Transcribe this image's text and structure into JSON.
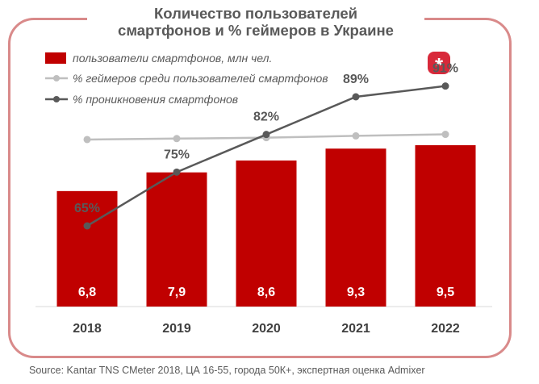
{
  "chart_data": {
    "type": "bar",
    "title_lines": [
      "Количество пользователей",
      "смартфонов и % геймеров в Украине"
    ],
    "categories": [
      "2018",
      "2019",
      "2020",
      "2021",
      "2022"
    ],
    "series": [
      {
        "name": "пользователи смартфонов, млн чел.",
        "kind": "bar",
        "color": "#c00000",
        "values": [
          6.8,
          7.9,
          8.6,
          9.3,
          9.5
        ],
        "labels": [
          "6,8",
          "7,9",
          "8,6",
          "9,3",
          "9,5"
        ]
      },
      {
        "name": "% геймеров среди пользователей смартфонов",
        "kind": "line",
        "color": "#bfbfbf",
        "values": [
          55.0,
          55.3,
          55.6,
          56.2,
          56.7
        ],
        "labels": [
          "55,0%",
          "55,3%",
          "55,6%",
          "56,2%",
          "56,7%"
        ]
      },
      {
        "name": "% проникновения смартфонов",
        "kind": "line",
        "color": "#595959",
        "values": [
          65,
          75,
          82,
          89,
          91
        ],
        "labels": [
          "65%",
          "75%",
          "82%",
          "89%",
          "91%"
        ]
      }
    ],
    "bar_ylim": [
      0,
      15.2
    ],
    "penetration_ylim": [
      50,
      98
    ],
    "gamers_ylim": [
      0,
      85
    ],
    "legend_position": "top-left",
    "grid": false
  },
  "logo": {
    "glyph": "*",
    "color": "#d8293a",
    "name": "admixer-logo"
  },
  "source": "Source: Kantar TNS CMeter 2018, ЦА 16-55, города 50К+, экспертная оценка Admixer"
}
